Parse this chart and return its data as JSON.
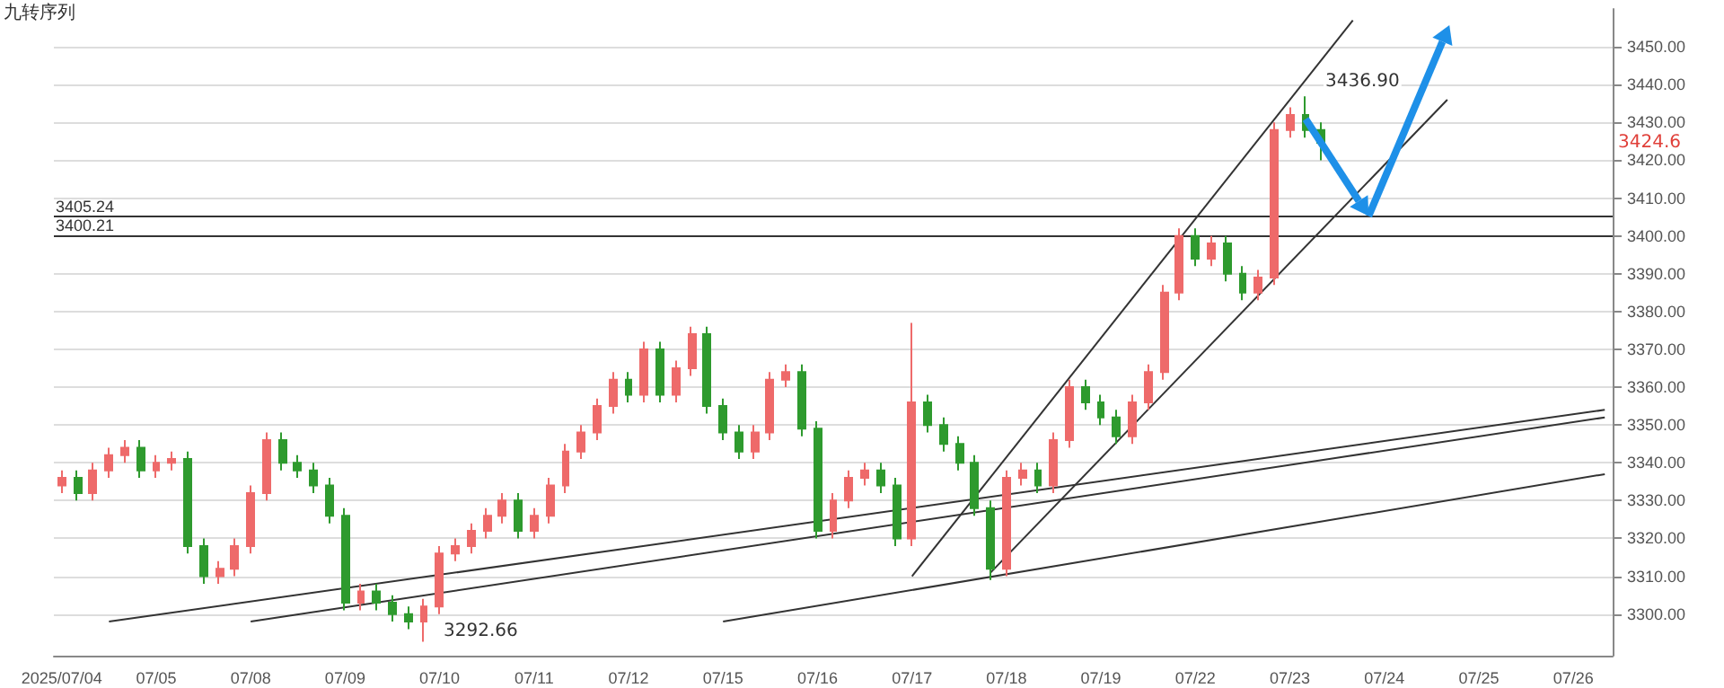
{
  "chart_data": {
    "type": "candlestick",
    "title": "九转序列",
    "categories": [
      "2025/07/04",
      null,
      null,
      null,
      null,
      null,
      "07/05",
      null,
      null,
      null,
      null,
      null,
      "07/08",
      null,
      null,
      null,
      null,
      null,
      "07/09",
      null,
      null,
      null,
      null,
      null,
      "07/10",
      null,
      null,
      null,
      null,
      null,
      "07/11",
      null,
      null,
      null,
      null,
      null,
      "07/12",
      null,
      null,
      null,
      null,
      null,
      "07/15",
      null,
      null,
      null,
      null,
      null,
      "07/16",
      null,
      null,
      null,
      null,
      null,
      "07/17",
      null,
      null,
      null,
      null,
      null,
      "07/18",
      null,
      null,
      null,
      null,
      null,
      "07/19",
      null,
      null,
      null,
      null,
      null,
      "07/22",
      null,
      null,
      null,
      null,
      null,
      "07/23",
      null,
      null,
      null,
      null,
      null,
      "07/24",
      null,
      null,
      null,
      null,
      null,
      "07/25",
      null,
      null,
      null,
      null,
      null,
      "07/26",
      null,
      null
    ],
    "ohlc": [
      [
        3334,
        3338,
        3332,
        3336
      ],
      [
        3336,
        3338,
        3330,
        3332
      ],
      [
        3332,
        3340,
        3330,
        3338
      ],
      [
        3338,
        3344,
        3336,
        3342
      ],
      [
        3342,
        3346,
        3340,
        3344
      ],
      [
        3344,
        3346,
        3336,
        3338
      ],
      [
        3338,
        3342,
        3336,
        3340
      ],
      [
        3340,
        3343,
        3338,
        3341
      ],
      [
        3341,
        3343,
        3316,
        3318
      ],
      [
        3318,
        3320,
        3308,
        3310
      ],
      [
        3310,
        3314,
        3308,
        3312
      ],
      [
        3312,
        3320,
        3310,
        3318
      ],
      [
        3318,
        3334,
        3316,
        3332
      ],
      [
        3332,
        3348,
        3330,
        3346
      ],
      [
        3346,
        3348,
        3338,
        3340
      ],
      [
        3340,
        3342,
        3336,
        3338
      ],
      [
        3338,
        3340,
        3332,
        3334
      ],
      [
        3334,
        3336,
        3324,
        3326
      ],
      [
        3326,
        3328,
        3301,
        3303
      ],
      [
        3303,
        3308,
        3301,
        3306
      ],
      [
        3306,
        3308,
        3301,
        3303
      ],
      [
        3303,
        3305,
        3298,
        3300
      ],
      [
        3300,
        3302,
        3296,
        3298
      ],
      [
        3298,
        3304,
        3292.66,
        3302
      ],
      [
        3302,
        3318,
        3300,
        3316
      ],
      [
        3316,
        3320,
        3314,
        3318
      ],
      [
        3318,
        3324,
        3316,
        3322
      ],
      [
        3322,
        3328,
        3320,
        3326
      ],
      [
        3326,
        3332,
        3324,
        3330
      ],
      [
        3330,
        3332,
        3320,
        3322
      ],
      [
        3322,
        3328,
        3320,
        3326
      ],
      [
        3326,
        3336,
        3324,
        3334
      ],
      [
        3334,
        3345,
        3332,
        3343
      ],
      [
        3343,
        3350,
        3341,
        3348
      ],
      [
        3348,
        3357,
        3346,
        3355
      ],
      [
        3355,
        3364,
        3353,
        3362
      ],
      [
        3362,
        3364,
        3356,
        3358
      ],
      [
        3358,
        3372,
        3356,
        3370
      ],
      [
        3370,
        3372,
        3356,
        3358
      ],
      [
        3358,
        3367,
        3356,
        3365
      ],
      [
        3365,
        3376,
        3363,
        3374
      ],
      [
        3374,
        3376,
        3353,
        3355
      ],
      [
        3355,
        3357,
        3346,
        3348
      ],
      [
        3348,
        3350,
        3341,
        3343
      ],
      [
        3343,
        3350,
        3341,
        3348
      ],
      [
        3348,
        3364,
        3346,
        3362
      ],
      [
        3362,
        3366,
        3360,
        3364
      ],
      [
        3364,
        3366,
        3347,
        3349
      ],
      [
        3349,
        3351,
        3320,
        3322
      ],
      [
        3322,
        3332,
        3320,
        3330
      ],
      [
        3330,
        3338,
        3328,
        3336
      ],
      [
        3336,
        3340,
        3334,
        3338
      ],
      [
        3338,
        3340,
        3332,
        3334
      ],
      [
        3334,
        3336,
        3318,
        3320
      ],
      [
        3320,
        3377,
        3318,
        3356
      ],
      [
        3356,
        3358,
        3348,
        3350
      ],
      [
        3350,
        3352,
        3343,
        3345
      ],
      [
        3345,
        3347,
        3338,
        3340
      ],
      [
        3340,
        3342,
        3326,
        3328
      ],
      [
        3328,
        3330,
        3309,
        3312
      ],
      [
        3312,
        3338,
        3310,
        3336
      ],
      [
        3336,
        3340,
        3334,
        3338
      ],
      [
        3338,
        3340,
        3332,
        3334
      ],
      [
        3334,
        3348,
        3332,
        3346
      ],
      [
        3346,
        3362,
        3344,
        3360
      ],
      [
        3360,
        3362,
        3354,
        3356
      ],
      [
        3356,
        3358,
        3350,
        3352
      ],
      [
        3352,
        3354,
        3345,
        3347
      ],
      [
        3347,
        3358,
        3345,
        3356
      ],
      [
        3356,
        3366,
        3354,
        3364
      ],
      [
        3364,
        3387,
        3362,
        3385
      ],
      [
        3385,
        3402,
        3383,
        3400
      ],
      [
        3400,
        3402,
        3392,
        3394
      ],
      [
        3394,
        3400,
        3392,
        3398
      ],
      [
        3398,
        3400,
        3388,
        3390
      ],
      [
        3390,
        3392,
        3383,
        3385
      ],
      [
        3385,
        3391,
        3383,
        3389
      ],
      [
        3389,
        3430,
        3387,
        3428
      ],
      [
        3428,
        3434,
        3426,
        3432
      ],
      [
        3432,
        3436.9,
        3426,
        3428
      ],
      [
        3428,
        3430,
        3420,
        3424.6
      ],
      null,
      null,
      null,
      null,
      null,
      null,
      null,
      null,
      null,
      null,
      null,
      null,
      null,
      null,
      null,
      null,
      null,
      null
    ],
    "colors": [
      "#ee6a6a",
      "#2e9a2e",
      "#ee6a6a",
      "#ee6a6a",
      "#ee6a6a",
      "#2e9a2e",
      "#ee6a6a",
      "#ee6a6a",
      "#2e9a2e",
      "#2e9a2e",
      "#ee6a6a",
      "#ee6a6a",
      "#ee6a6a",
      "#ee6a6a",
      "#2e9a2e",
      "#2e9a2e",
      "#2e9a2e",
      "#2e9a2e",
      "#2e9a2e",
      "#ee6a6a",
      "#2e9a2e",
      "#2e9a2e",
      "#2e9a2e",
      "#ee6a6a",
      "#ee6a6a",
      "#ee6a6a",
      "#ee6a6a",
      "#ee6a6a",
      "#ee6a6a",
      "#2e9a2e",
      "#ee6a6a",
      "#ee6a6a",
      "#ee6a6a",
      "#ee6a6a",
      "#ee6a6a",
      "#ee6a6a",
      "#2e9a2e",
      "#ee6a6a",
      "#2e9a2e",
      "#ee6a6a",
      "#ee6a6a",
      "#2e9a2e",
      "#2e9a2e",
      "#2e9a2e",
      "#ee6a6a",
      "#ee6a6a",
      "#ee6a6a",
      "#2e9a2e",
      "#2e9a2e",
      "#ee6a6a",
      "#ee6a6a",
      "#ee6a6a",
      "#2e9a2e",
      "#2e9a2e",
      "#ee6a6a",
      "#2e9a2e",
      "#2e9a2e",
      "#2e9a2e",
      "#2e9a2e",
      "#2e9a2e",
      "#ee6a6a",
      "#ee6a6a",
      "#2e9a2e",
      "#ee6a6a",
      "#ee6a6a",
      "#2e9a2e",
      "#2e9a2e",
      "#2e9a2e",
      "#ee6a6a",
      "#ee6a6a",
      "#ee6a6a",
      "#ee6a6a",
      "#2e9a2e",
      "#ee6a6a",
      "#2e9a2e",
      "#2e9a2e",
      "#ee6a6a",
      "#ee6a6a",
      "#ee6a6a",
      "#2e9a2e",
      "#2e9a2e",
      null,
      null,
      null,
      null,
      null,
      null,
      null,
      null,
      null,
      null,
      null,
      null,
      null,
      null,
      null,
      null,
      null,
      null
    ],
    "series": [
      {
        "type": "line",
        "color": "#333333",
        "values": [
          null,
          null,
          null,
          null,
          null,
          null,
          null,
          null,
          null,
          null,
          null,
          null,
          null,
          null,
          null,
          null,
          null,
          null,
          null,
          null,
          null,
          null,
          null,
          null,
          null,
          null,
          null,
          null,
          null,
          null,
          null,
          null,
          null,
          null,
          null,
          null,
          null,
          null,
          null,
          null,
          null,
          null,
          null,
          null,
          null,
          null,
          null,
          null,
          null,
          null,
          null,
          null,
          null,
          null,
          3310,
          null,
          null,
          null,
          null,
          null,
          null,
          null,
          null,
          null,
          null,
          null,
          null,
          null,
          null,
          null,
          null,
          null,
          null,
          null,
          null,
          null,
          null,
          null,
          null,
          null,
          null,
          null,
          3457,
          null,
          null,
          null,
          null,
          null,
          null,
          null,
          null,
          null,
          null,
          null,
          null,
          null,
          null,
          null,
          null
        ]
      },
      {
        "type": "line",
        "color": "#333333",
        "values": [
          null,
          null,
          null,
          null,
          null,
          null,
          null,
          null,
          null,
          null,
          null,
          null,
          null,
          null,
          null,
          null,
          null,
          null,
          null,
          null,
          null,
          null,
          null,
          null,
          null,
          null,
          null,
          null,
          null,
          null,
          null,
          null,
          null,
          null,
          null,
          null,
          null,
          null,
          null,
          null,
          null,
          null,
          null,
          null,
          null,
          null,
          null,
          null,
          null,
          null,
          null,
          null,
          null,
          null,
          null,
          null,
          null,
          null,
          null,
          3311,
          null,
          null,
          null,
          null,
          null,
          null,
          null,
          null,
          null,
          null,
          null,
          null,
          null,
          null,
          null,
          null,
          null,
          null,
          null,
          null,
          null,
          null,
          null,
          null,
          null,
          null,
          null,
          null,
          3436,
          null,
          null,
          null,
          null,
          null,
          null,
          null,
          null,
          null,
          null
        ]
      },
      {
        "type": "line",
        "color": "#333333",
        "values": [
          null,
          null,
          null,
          3298,
          null,
          null,
          null,
          null,
          null,
          null,
          null,
          null,
          null,
          null,
          null,
          null,
          null,
          null,
          null,
          null,
          null,
          null,
          null,
          null,
          null,
          null,
          null,
          null,
          null,
          null,
          null,
          null,
          null,
          null,
          null,
          null,
          null,
          null,
          null,
          null,
          null,
          null,
          null,
          null,
          null,
          null,
          null,
          null,
          null,
          null,
          null,
          null,
          null,
          null,
          null,
          null,
          null,
          null,
          null,
          null,
          null,
          null,
          null,
          null,
          null,
          null,
          null,
          null,
          null,
          null,
          null,
          null,
          null,
          null,
          null,
          null,
          null,
          null,
          null,
          null,
          null,
          null,
          null,
          null,
          null,
          null,
          null,
          null,
          null,
          null,
          null,
          null,
          null,
          null,
          null,
          null,
          null,
          null,
          3354
        ]
      },
      {
        "type": "line",
        "color": "#333333",
        "values": [
          null,
          null,
          null,
          null,
          null,
          null,
          null,
          null,
          null,
          null,
          null,
          null,
          3298,
          null,
          null,
          null,
          null,
          null,
          null,
          null,
          null,
          null,
          null,
          null,
          null,
          null,
          null,
          null,
          null,
          null,
          null,
          null,
          null,
          null,
          null,
          null,
          null,
          null,
          null,
          null,
          null,
          null,
          null,
          null,
          null,
          null,
          null,
          null,
          null,
          null,
          null,
          null,
          null,
          null,
          null,
          null,
          null,
          null,
          null,
          null,
          null,
          null,
          null,
          null,
          null,
          null,
          null,
          null,
          null,
          null,
          null,
          null,
          null,
          null,
          null,
          null,
          null,
          null,
          null,
          null,
          null,
          null,
          null,
          null,
          null,
          null,
          null,
          null,
          null,
          null,
          null,
          null,
          null,
          null,
          null,
          null,
          null,
          null,
          3352
        ]
      },
      {
        "type": "line",
        "color": "#333333",
        "values": [
          null,
          null,
          null,
          null,
          null,
          null,
          null,
          null,
          null,
          null,
          null,
          null,
          null,
          null,
          null,
          null,
          null,
          null,
          null,
          null,
          null,
          null,
          null,
          null,
          null,
          null,
          null,
          null,
          null,
          null,
          null,
          null,
          null,
          null,
          null,
          null,
          null,
          null,
          null,
          null,
          null,
          null,
          3298,
          null,
          null,
          null,
          null,
          null,
          null,
          null,
          null,
          null,
          null,
          null,
          null,
          null,
          null,
          null,
          null,
          null,
          null,
          null,
          null,
          null,
          null,
          null,
          null,
          null,
          null,
          null,
          null,
          null,
          null,
          null,
          null,
          null,
          null,
          null,
          null,
          null,
          null,
          null,
          null,
          null,
          null,
          null,
          null,
          null,
          null,
          null,
          null,
          null,
          null,
          null,
          null,
          null,
          null,
          null,
          3337
        ]
      }
    ],
    "ylim": [
      3289,
      3460
    ],
    "yticks": [
      {
        "value": 3300,
        "label": "3300.00"
      },
      {
        "value": 3310,
        "label": "3310.00"
      },
      {
        "value": 3320,
        "label": "3320.00"
      },
      {
        "value": 3330,
        "label": "3330.00"
      },
      {
        "value": 3340,
        "label": "3340.00"
      },
      {
        "value": 3350,
        "label": "3350.00"
      },
      {
        "value": 3360,
        "label": "3360.00"
      },
      {
        "value": 3370,
        "label": "3370.00"
      },
      {
        "value": 3380,
        "label": "3380.00"
      },
      {
        "value": 3390,
        "label": "3390.00"
      },
      {
        "value": 3400,
        "label": "3400.00"
      },
      {
        "value": 3410,
        "label": "3410.00"
      },
      {
        "value": 3420,
        "label": "3420.00"
      },
      {
        "value": 3430,
        "label": "3430.00"
      },
      {
        "value": 3440,
        "label": "3440.00"
      },
      {
        "value": 3450,
        "label": "3450.00"
      }
    ],
    "grid": "y",
    "ref_lines": [
      {
        "axis": "y",
        "value": 3405.24,
        "label": "3405.24",
        "color": "#333333"
      },
      {
        "axis": "y",
        "value": 3400.21,
        "label": "3400.21",
        "color": "#333333"
      }
    ],
    "annotations": [
      "3436.90",
      "3292.66",
      "3424.6"
    ]
  }
}
